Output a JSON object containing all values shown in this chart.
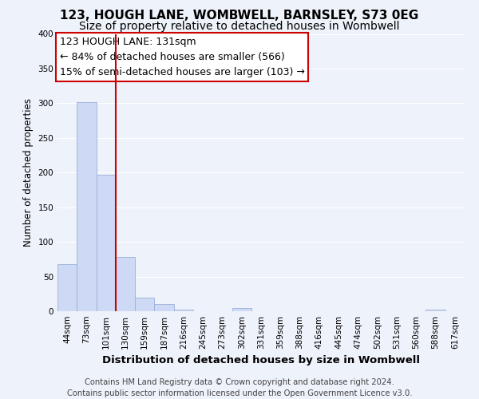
{
  "title": "123, HOUGH LANE, WOMBWELL, BARNSLEY, S73 0EG",
  "subtitle": "Size of property relative to detached houses in Wombwell",
  "xlabel": "Distribution of detached houses by size in Wombwell",
  "ylabel": "Number of detached properties",
  "bar_labels": [
    "44sqm",
    "73sqm",
    "101sqm",
    "130sqm",
    "159sqm",
    "187sqm",
    "216sqm",
    "245sqm",
    "273sqm",
    "302sqm",
    "331sqm",
    "359sqm",
    "388sqm",
    "416sqm",
    "445sqm",
    "474sqm",
    "502sqm",
    "531sqm",
    "560sqm",
    "588sqm",
    "617sqm"
  ],
  "bar_values": [
    68,
    302,
    197,
    78,
    20,
    10,
    2,
    0,
    0,
    5,
    0,
    0,
    0,
    0,
    0,
    0,
    0,
    0,
    0,
    2,
    0
  ],
  "bar_color": "#cdd9f5",
  "bar_edge_color": "#9ab0d8",
  "vline_color": "#cc0000",
  "vline_index": 2.5,
  "annotation_line1": "123 HOUGH LANE: 131sqm",
  "annotation_line2": "← 84% of detached houses are smaller (566)",
  "annotation_line3": "15% of semi-detached houses are larger (103) →",
  "annotation_box_color": "#ffffff",
  "annotation_box_edge_color": "#cc0000",
  "footer_line1": "Contains HM Land Registry data © Crown copyright and database right 2024.",
  "footer_line2": "Contains public sector information licensed under the Open Government Licence v3.0.",
  "ylim": [
    0,
    400
  ],
  "yticks": [
    0,
    50,
    100,
    150,
    200,
    250,
    300,
    350,
    400
  ],
  "bg_color": "#eef2fa",
  "grid_color": "#ffffff",
  "title_fontsize": 11,
  "subtitle_fontsize": 10,
  "xlabel_fontsize": 9.5,
  "ylabel_fontsize": 8.5,
  "tick_fontsize": 7.5,
  "footer_fontsize": 7.2,
  "annot_fontsize": 9
}
